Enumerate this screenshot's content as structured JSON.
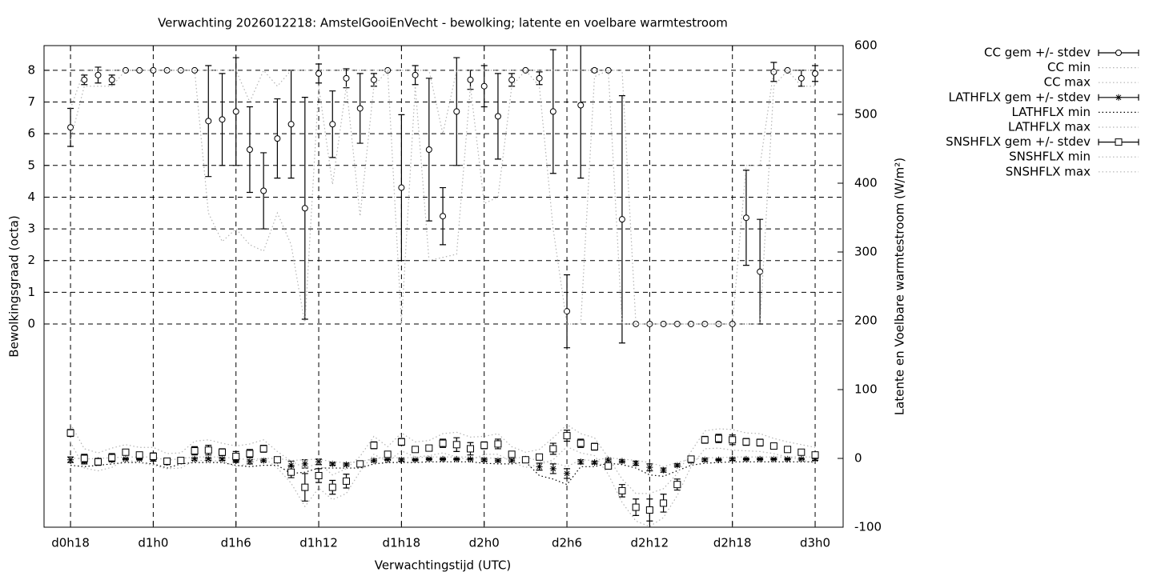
{
  "chart_data": {
    "type": "errorbar-line",
    "title": "Verwachting 2026012218: AmstelGooiEnVecht - bewolking; latente en voelbare warmtestroom",
    "x_label": "Verwachtingstijd (UTC)",
    "y_label": "Bewolkingsgraad (octa)",
    "y2_label": "Latente en Voelbare warmtestroom (W/m²)",
    "grid": true,
    "legend": "outside-right",
    "xlim": [
      16.08,
      74.03
    ],
    "xticks": [
      {
        "value": 18,
        "label": "d0h18"
      },
      {
        "value": 24,
        "label": "d1h0"
      },
      {
        "value": 30,
        "label": "d1h6"
      },
      {
        "value": 36,
        "label": "d1h12"
      },
      {
        "value": 42,
        "label": "d1h18"
      },
      {
        "value": 48,
        "label": "d2h0"
      },
      {
        "value": 54,
        "label": "d2h6"
      },
      {
        "value": 60,
        "label": "d2h12"
      },
      {
        "value": 66,
        "label": "d2h18"
      },
      {
        "value": 72,
        "label": "d3h0"
      }
    ],
    "ylim": [
      -6.41,
      8.78
    ],
    "yticks": [
      0,
      1,
      2,
      3,
      4,
      5,
      6,
      7,
      8
    ],
    "y2lim": [
      -100,
      600
    ],
    "y2ticks": [
      -100,
      0,
      100,
      200,
      300,
      400,
      500,
      600
    ],
    "x": [
      18,
      19,
      20,
      21,
      22,
      23,
      24,
      25,
      26,
      27,
      28,
      29,
      30,
      31,
      32,
      33,
      34,
      35,
      36,
      37,
      38,
      39,
      40,
      41,
      42,
      43,
      44,
      45,
      46,
      47,
      48,
      49,
      50,
      51,
      52,
      53,
      54,
      55,
      56,
      57,
      58,
      59,
      60,
      61,
      62,
      63,
      64,
      65,
      66,
      67,
      68,
      69,
      70,
      71,
      72
    ],
    "series": [
      {
        "name": "CC gem +/- stdev",
        "color": "#000000",
        "marker": "circle",
        "axis": "y",
        "values": [
          6.2,
          7.7,
          7.85,
          7.7,
          8,
          8,
          8,
          8,
          8,
          8,
          6.4,
          6.45,
          6.7,
          5.5,
          4.2,
          5.85,
          6.3,
          3.65,
          7.9,
          6.3,
          7.75,
          6.8,
          7.7,
          8,
          4.3,
          7.85,
          5.5,
          3.4,
          6.7,
          7.7,
          7.5,
          6.55,
          7.7,
          8,
          7.75,
          6.7,
          0.4,
          6.9,
          8,
          8,
          3.3,
          0,
          0,
          0,
          0,
          0,
          0,
          0,
          0,
          3.35,
          1.65,
          7.95,
          8,
          7.75,
          7.9
        ],
        "errors": [
          0.6,
          0.15,
          0.25,
          0.15,
          0,
          0,
          0,
          0,
          0,
          0,
          1.75,
          1.45,
          1.7,
          1.35,
          1.2,
          1.25,
          1.7,
          3.5,
          0.3,
          1.05,
          0.3,
          1.1,
          0.2,
          0,
          2.3,
          0.3,
          2.25,
          0.9,
          1.7,
          0.3,
          0.65,
          1.35,
          0.2,
          0,
          0.2,
          1.95,
          1.15,
          2.3,
          0.05,
          0,
          3.9,
          0,
          0,
          0,
          0,
          0,
          0,
          0,
          0,
          1.5,
          1.65,
          0.3,
          0,
          0.25,
          0.25
        ]
      },
      {
        "name": "CC min",
        "color": "#b4b4b4",
        "axis": "y",
        "values": [
          5.8,
          7.5,
          7.5,
          7.5,
          8,
          8,
          8,
          8,
          8,
          8,
          3.5,
          2.6,
          3.0,
          2.5,
          2.3,
          3.5,
          2.5,
          0,
          7.5,
          4.4,
          7.5,
          3.4,
          7.5,
          8,
          0,
          7.5,
          2,
          2.1,
          2.2,
          7.5,
          3.8,
          4.0,
          7.5,
          8,
          7.5,
          3.0,
          0,
          0,
          7.8,
          8,
          0,
          0,
          0,
          0,
          0,
          0,
          0,
          0,
          0,
          0,
          0,
          7.5,
          8,
          7.5,
          7.5
        ]
      },
      {
        "name": "CC max",
        "color": "#b4b4b4",
        "axis": "y",
        "values": [
          6.8,
          8,
          8,
          8,
          8,
          8,
          8,
          8,
          8,
          8,
          8,
          8,
          8,
          7,
          8,
          7.5,
          8,
          8,
          8,
          8,
          8,
          8,
          8,
          8,
          8,
          8,
          8,
          6,
          8,
          8,
          8,
          8,
          8,
          8,
          8,
          8,
          8,
          8,
          8,
          8,
          8,
          0,
          0,
          0,
          0,
          0,
          0,
          0,
          0,
          5,
          5,
          8,
          8,
          8,
          8
        ]
      },
      {
        "name": "LATHFLX gem +/- stdev",
        "color": "#000000",
        "marker": "star",
        "axis": "y2",
        "values": [
          -2,
          -4,
          -3,
          -2,
          -1,
          -1,
          -1,
          -6,
          -3,
          -1,
          -1,
          -1,
          -3,
          -5,
          -3,
          -3,
          -10,
          -8,
          -5,
          -8,
          -9,
          -8,
          -3,
          -2,
          -2,
          -2,
          -1,
          -1,
          -1,
          -1,
          -2,
          -3,
          -3,
          -1,
          -12,
          -15,
          -22,
          -5,
          -6,
          -2,
          -4,
          -7,
          -13,
          -17,
          -10,
          -4,
          -2,
          -2,
          -1,
          -1,
          -1,
          -1,
          -1,
          -1,
          -1
        ],
        "errors": [
          4,
          4,
          2,
          2,
          1,
          1,
          3,
          3,
          2,
          2,
          2,
          2,
          3,
          3,
          2,
          2,
          6,
          6,
          4,
          2,
          2,
          2,
          2,
          1,
          2,
          1,
          1,
          1,
          1,
          1,
          2,
          2,
          2,
          1,
          5,
          7,
          7,
          3,
          2,
          2,
          2,
          3,
          5,
          3,
          2,
          2,
          2,
          1,
          2,
          1,
          1,
          1,
          1,
          1,
          2
        ]
      },
      {
        "name": "LATHFLX min",
        "color": "#000000",
        "axis": "y2",
        "values": [
          -10,
          -12,
          -10,
          -8,
          -6,
          -6,
          -8,
          -14,
          -8,
          -6,
          -6,
          -6,
          -10,
          -12,
          -10,
          -10,
          -22,
          -20,
          -14,
          -14,
          -14,
          -14,
          -8,
          -6,
          -6,
          -6,
          -5,
          -5,
          -5,
          -5,
          -7,
          -8,
          -8,
          -5,
          -25,
          -30,
          -38,
          -12,
          -12,
          -7,
          -9,
          -14,
          -24,
          -26,
          -18,
          -10,
          -7,
          -6,
          -5,
          -5,
          -5,
          -5,
          -5,
          -5,
          -5
        ]
      },
      {
        "name": "LATHFLX max",
        "color": "#b4b4b4",
        "axis": "y2",
        "values": [
          1,
          -1,
          0,
          1,
          2,
          2,
          2,
          -3,
          0,
          2,
          2,
          2,
          0,
          -2,
          0,
          0,
          -3,
          -2,
          -1,
          -5,
          -6,
          -5,
          0,
          1,
          1,
          1,
          2,
          2,
          2,
          2,
          1,
          0,
          0,
          2,
          -4,
          -6,
          -12,
          -2,
          -3,
          1,
          -1,
          -3,
          -6,
          -12,
          -6,
          -1,
          1,
          1,
          2,
          2,
          2,
          2,
          2,
          2,
          2
        ]
      },
      {
        "name": "SNSHFLX gem +/- stdev",
        "color": "#000000",
        "marker": "square",
        "axis": "y2",
        "values": [
          37,
          0,
          -5,
          1,
          9,
          5,
          3,
          -4,
          -3,
          11,
          12,
          9,
          3,
          7,
          14,
          -2,
          -20,
          -42,
          -25,
          -42,
          -33,
          -8,
          19,
          6,
          24,
          13,
          15,
          22,
          20,
          14,
          19,
          21,
          6,
          -2,
          2,
          14,
          33,
          22,
          17,
          -11,
          -47,
          -71,
          -75,
          -65,
          -38,
          -1,
          27,
          29,
          27,
          24,
          23,
          18,
          13,
          9,
          5
        ],
        "errors": [
          5,
          6,
          5,
          6,
          3,
          3,
          5,
          3,
          3,
          6,
          7,
          5,
          7,
          6,
          5,
          4,
          8,
          20,
          10,
          10,
          10,
          3,
          5,
          3,
          5,
          3,
          3,
          6,
          10,
          9,
          5,
          7,
          3,
          3,
          3,
          8,
          8,
          6,
          5,
          4,
          9,
          12,
          16,
          13,
          8,
          3,
          5,
          6,
          7,
          5,
          5,
          3,
          3,
          3,
          4
        ]
      },
      {
        "name": "SNSHFLX min",
        "color": "#b4b4b4",
        "axis": "y2",
        "values": [
          24,
          -14,
          -18,
          -13,
          -2,
          -6,
          -10,
          -15,
          -14,
          -3,
          -3,
          -4,
          -12,
          -7,
          1,
          -14,
          -36,
          -70,
          -43,
          -60,
          -51,
          -19,
          6,
          -5,
          11,
          2,
          4,
          8,
          2,
          -3,
          6,
          6,
          -5,
          -13,
          -9,
          -2,
          17,
          8,
          4,
          -23,
          -64,
          -91,
          -99,
          -86,
          -54,
          -12,
          14,
          15,
          12,
          11,
          10,
          7,
          2,
          -2,
          -7
        ]
      },
      {
        "name": "SNSHFLX max",
        "color": "#b4b4b4",
        "axis": "y2",
        "values": [
          50,
          14,
          8,
          15,
          20,
          16,
          16,
          7,
          8,
          25,
          27,
          22,
          18,
          21,
          27,
          10,
          -4,
          -14,
          -7,
          -24,
          -15,
          3,
          32,
          17,
          37,
          24,
          26,
          36,
          38,
          31,
          32,
          36,
          17,
          9,
          13,
          30,
          49,
          36,
          30,
          1,
          -30,
          -51,
          -51,
          -44,
          -22,
          10,
          40,
          43,
          42,
          37,
          36,
          29,
          24,
          20,
          16
        ]
      }
    ]
  }
}
